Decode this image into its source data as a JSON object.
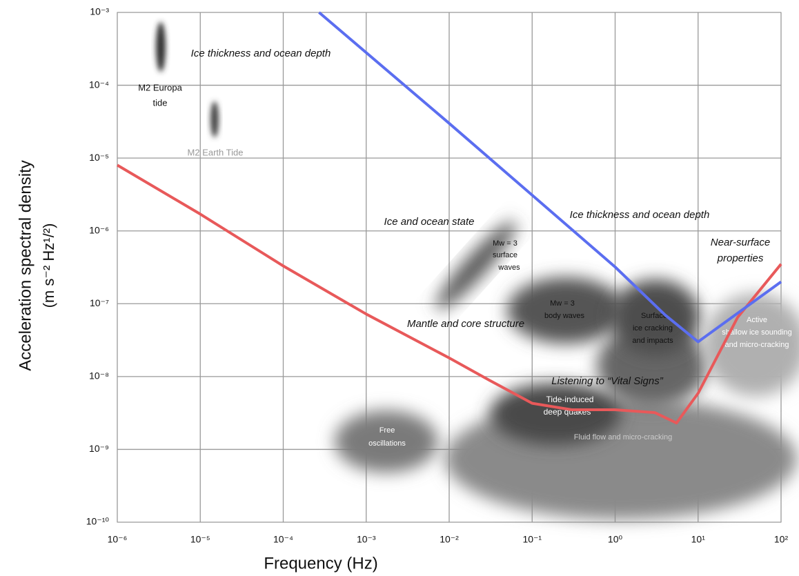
{
  "chart_data": {
    "type": "line",
    "xlabel": "Frequency (Hz)",
    "ylabel": [
      "Acceleration spectral density",
      "(m s⁻² Hz¹/²)"
    ],
    "xscale": "log",
    "yscale": "log",
    "grid": true,
    "xlim": [
      1e-06,
      100
    ],
    "ylim": [
      1e-10,
      0.001
    ],
    "xticks": [
      {
        "value": 1e-06,
        "label": "10⁻⁶"
      },
      {
        "value": 1e-05,
        "label": "10⁻⁵"
      },
      {
        "value": 0.0001,
        "label": "10⁻⁴"
      },
      {
        "value": 0.001,
        "label": "10⁻³"
      },
      {
        "value": 0.01,
        "label": "10⁻²"
      },
      {
        "value": 0.1,
        "label": "10⁻¹"
      },
      {
        "value": 1,
        "label": "10⁰"
      },
      {
        "value": 10,
        "label": "10¹"
      },
      {
        "value": 100,
        "label": "10²"
      }
    ],
    "yticks": [
      {
        "value": 1e-10,
        "label": "10⁻¹⁰"
      },
      {
        "value": 1e-09,
        "label": "10⁻⁹"
      },
      {
        "value": 1e-08,
        "label": "10⁻⁸"
      },
      {
        "value": 1e-07,
        "label": "10⁻⁷"
      },
      {
        "value": 1e-06,
        "label": "10⁻⁶"
      },
      {
        "value": 1e-05,
        "label": "10⁻⁵"
      },
      {
        "value": 0.0001,
        "label": "10⁻⁴"
      },
      {
        "value": 0.001,
        "label": "10⁻³"
      }
    ],
    "series": [
      {
        "color": "#e8595a",
        "x": [
          1e-06,
          1e-05,
          0.0001,
          0.001,
          0.01,
          0.03,
          0.1,
          0.3,
          1,
          3,
          5.5,
          10,
          30,
          100
        ],
        "values": [
          8e-06,
          1.7e-06,
          3.3e-07,
          7.2e-08,
          1.8e-08,
          9e-09,
          4.3e-09,
          3.5e-09,
          3.5e-09,
          3.2e-09,
          2.3e-09,
          5.9e-09,
          6.5e-08,
          3.5e-07
        ]
      },
      {
        "color": "#5b6ef0",
        "x": [
          0.00027,
          0.01,
          1,
          4,
          10,
          100
        ],
        "values": [
          0.001,
          3e-05,
          3.2e-07,
          7e-08,
          3e-08,
          2e-07
        ]
      }
    ],
    "annotations": [
      [
        "Ice thickness and ocean depth"
      ],
      [
        "M2 Europa",
        "tide"
      ],
      [
        "M2 Earth Tide"
      ],
      [
        "Ice and ocean state"
      ],
      [
        "Ice thickness and ocean depth"
      ],
      [
        "Near-surface",
        "properties"
      ],
      [
        "Mw = 3",
        "surface",
        "waves"
      ],
      [
        "Mantle and core structure"
      ],
      [
        "Mw = 3",
        "body waves"
      ],
      [
        "Surface",
        "ice cracking",
        "and impacts"
      ],
      [
        "Active",
        "shallow ice sounding",
        "and micro-cracking"
      ],
      [
        "Listening to “Vital Signs”"
      ],
      [
        "Tide-induced",
        "deep quakes"
      ],
      [
        "Free",
        "oscillations"
      ],
      [
        "Fluid flow and micro-cracking"
      ]
    ]
  }
}
